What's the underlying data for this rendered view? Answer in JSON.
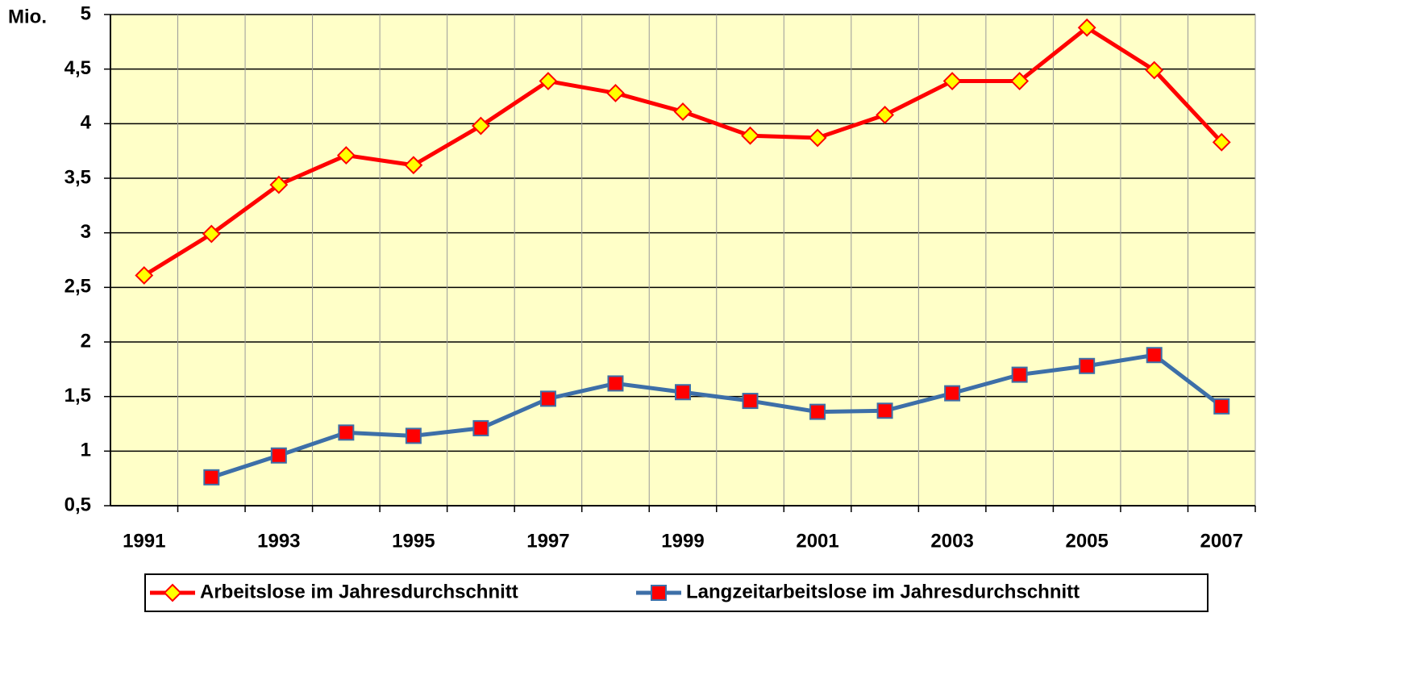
{
  "chart_data": {
    "type": "line",
    "y_label": "Mio.",
    "categories": [
      "1991",
      null,
      "1993",
      null,
      "1995",
      null,
      "1997",
      null,
      "1999",
      null,
      "2001",
      null,
      "2003",
      null,
      "2005",
      null,
      "2007"
    ],
    "series": [
      {
        "name": "Arbeitslose im Jahresdurchschnitt",
        "color": "#ff0000",
        "marker": "diamond",
        "marker_fill": "#ffff00",
        "marker_stroke": "#ff0000",
        "values": [
          2.61,
          2.99,
          3.44,
          3.71,
          3.62,
          3.98,
          4.39,
          4.28,
          4.11,
          3.89,
          3.87,
          4.08,
          4.39,
          4.39,
          4.88,
          4.49,
          3.83
        ]
      },
      {
        "name": "Langzeitarbeitslose im Jahresdurchschnitt",
        "color": "#3d6fa8",
        "marker": "square",
        "marker_fill": "#ff0000",
        "marker_stroke": "#3d6fa8",
        "values": [
          null,
          0.76,
          0.96,
          1.17,
          1.14,
          1.21,
          1.48,
          1.62,
          1.54,
          1.46,
          1.36,
          1.37,
          1.53,
          1.7,
          1.78,
          1.88,
          1.41
        ]
      }
    ],
    "ylim": [
      0.5,
      5
    ],
    "yticks": [
      {
        "value": 0.5,
        "label": "0,5"
      },
      1,
      {
        "value": 1.5,
        "label": "1,5"
      },
      2,
      {
        "value": 2.5,
        "label": "2,5"
      },
      3,
      {
        "value": 3.5,
        "label": "3,5"
      },
      4,
      {
        "value": 4.5,
        "label": "4,5"
      },
      5
    ],
    "grid": true,
    "plot_background": "#ffffc8",
    "legend": "bottom"
  }
}
